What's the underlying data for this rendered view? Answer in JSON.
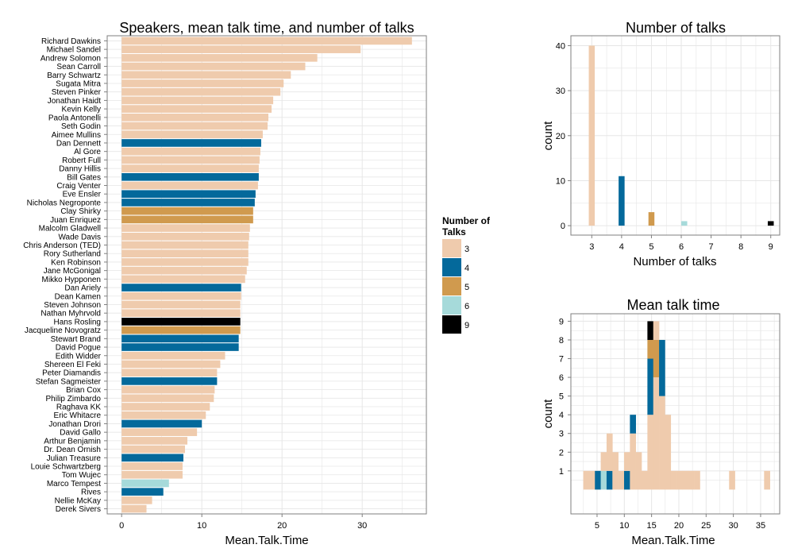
{
  "colors": {
    "3": "#efcbad",
    "4": "#04699b",
    "5": "#d09a4e",
    "6": "#a6dada",
    "9": "#000000",
    "grid": "#e6e6e6",
    "panel_border": "#7f7f7f"
  },
  "chart_data": [
    {
      "type": "bar",
      "orientation": "horizontal",
      "title": "Speakers, mean talk time, and number of talks",
      "xlabel": "Mean.Talk.Time",
      "ylabel": "",
      "xlim": [
        -1.8,
        38
      ],
      "xticks": [
        0,
        10,
        20,
        30
      ],
      "legend": {
        "title_lines": [
          "Number of",
          "Talks"
        ],
        "placement": "right",
        "entries": [
          "3",
          "4",
          "5",
          "6",
          "9"
        ]
      },
      "bars": [
        {
          "name": "Richard Dawkins",
          "value": 36.2,
          "talks": 3
        },
        {
          "name": "Michael Sandel",
          "value": 29.8,
          "talks": 3
        },
        {
          "name": "Andrew Solomon",
          "value": 24.4,
          "talks": 3
        },
        {
          "name": "Sean Carroll",
          "value": 22.9,
          "talks": 3
        },
        {
          "name": "Barry Schwartz",
          "value": 21.1,
          "talks": 3
        },
        {
          "name": "Sugata Mitra",
          "value": 20.2,
          "talks": 3
        },
        {
          "name": "Steven Pinker",
          "value": 19.8,
          "talks": 3
        },
        {
          "name": "Jonathan Haidt",
          "value": 18.9,
          "talks": 3
        },
        {
          "name": "Kevin Kelly",
          "value": 18.7,
          "talks": 3
        },
        {
          "name": "Paola Antonelli",
          "value": 18.3,
          "talks": 3
        },
        {
          "name": "Seth Godin",
          "value": 18.2,
          "talks": 3
        },
        {
          "name": "Aimee Mullins",
          "value": 17.6,
          "talks": 3
        },
        {
          "name": "Dan Dennett",
          "value": 17.4,
          "talks": 4
        },
        {
          "name": "Al Gore",
          "value": 17.3,
          "talks": 3
        },
        {
          "name": "Robert Full",
          "value": 17.2,
          "talks": 3
        },
        {
          "name": "Danny Hillis",
          "value": 17.1,
          "talks": 3
        },
        {
          "name": "Bill Gates",
          "value": 17.1,
          "talks": 4
        },
        {
          "name": "Craig Venter",
          "value": 17.0,
          "talks": 3
        },
        {
          "name": "Eve Ensler",
          "value": 16.7,
          "talks": 4
        },
        {
          "name": "Nicholas Negroponte",
          "value": 16.6,
          "talks": 4
        },
        {
          "name": "Clay Shirky",
          "value": 16.4,
          "talks": 5
        },
        {
          "name": "Juan Enriquez",
          "value": 16.4,
          "talks": 5
        },
        {
          "name": "Malcolm Gladwell",
          "value": 16.0,
          "talks": 3
        },
        {
          "name": "Wade Davis",
          "value": 15.9,
          "talks": 3
        },
        {
          "name": "Chris Anderson (TED)",
          "value": 15.8,
          "talks": 3
        },
        {
          "name": "Rory Sutherland",
          "value": 15.8,
          "talks": 3
        },
        {
          "name": "Ken Robinson",
          "value": 15.8,
          "talks": 3
        },
        {
          "name": "Jane McGonigal",
          "value": 15.6,
          "talks": 3
        },
        {
          "name": "Mikko Hypponen",
          "value": 15.4,
          "talks": 3
        },
        {
          "name": "Dan Ariely",
          "value": 14.9,
          "talks": 4
        },
        {
          "name": "Dean Kamen",
          "value": 14.9,
          "talks": 3
        },
        {
          "name": "Steven Johnson",
          "value": 14.8,
          "talks": 3
        },
        {
          "name": "Nathan Myhrvold",
          "value": 14.8,
          "talks": 3
        },
        {
          "name": "Hans Rosling",
          "value": 14.8,
          "talks": 9
        },
        {
          "name": "Jacqueline Novogratz",
          "value": 14.8,
          "talks": 5
        },
        {
          "name": "Stewart Brand",
          "value": 14.6,
          "talks": 4
        },
        {
          "name": "David Pogue",
          "value": 14.6,
          "talks": 4
        },
        {
          "name": "Edith Widder",
          "value": 12.9,
          "talks": 3
        },
        {
          "name": "Shereen El Feki",
          "value": 12.3,
          "talks": 3
        },
        {
          "name": "Peter Diamandis",
          "value": 11.9,
          "talks": 3
        },
        {
          "name": "Stefan Sagmeister",
          "value": 11.9,
          "talks": 4
        },
        {
          "name": "Brian Cox",
          "value": 11.6,
          "talks": 3
        },
        {
          "name": "Philip Zimbardo",
          "value": 11.5,
          "talks": 3
        },
        {
          "name": "Raghava KK",
          "value": 11.0,
          "talks": 3
        },
        {
          "name": "Eric Whitacre",
          "value": 10.5,
          "talks": 3
        },
        {
          "name": "Jonathan Drori",
          "value": 10.0,
          "talks": 4
        },
        {
          "name": "David Gallo",
          "value": 9.4,
          "talks": 3
        },
        {
          "name": "Arthur Benjamin",
          "value": 8.2,
          "talks": 3
        },
        {
          "name": "Dr. Dean Ornish",
          "value": 7.9,
          "talks": 3
        },
        {
          "name": "Julian Treasure",
          "value": 7.7,
          "talks": 4
        },
        {
          "name": "Louie Schwartzberg",
          "value": 7.6,
          "talks": 3
        },
        {
          "name": "Tom Wujec",
          "value": 7.6,
          "talks": 3
        },
        {
          "name": "Marco Tempest",
          "value": 5.9,
          "talks": 6
        },
        {
          "name": "Rives",
          "value": 5.2,
          "talks": 4
        },
        {
          "name": "Nellie McKay",
          "value": 3.8,
          "talks": 3
        },
        {
          "name": "Derek Sivers",
          "value": 3.1,
          "talks": 3
        }
      ]
    },
    {
      "type": "bar",
      "title": "Number of talks",
      "xlabel": "Number of talks",
      "ylabel": "count",
      "xlim": [
        2.3,
        9.3
      ],
      "ylim": [
        -2.1,
        42.2
      ],
      "xticks": [
        3,
        4,
        5,
        6,
        7,
        8,
        9
      ],
      "yticks": [
        0,
        10,
        20,
        30,
        40
      ],
      "bars": [
        {
          "x": 3.0,
          "count": 40,
          "talks": 3
        },
        {
          "x": 4.0,
          "count": 11,
          "talks": 4
        },
        {
          "x": 5.0,
          "count": 3,
          "talks": 5
        },
        {
          "x": 6.1,
          "count": 1,
          "talks": 6
        },
        {
          "x": 9.0,
          "count": 1,
          "talks": 9
        }
      ]
    },
    {
      "type": "bar",
      "stacked": true,
      "title": "Mean talk time",
      "xlabel": "Mean.Talk.Time",
      "ylabel": "count",
      "xlim": [
        0.2,
        38.5
      ],
      "ylim": [
        -1.3,
        9.4
      ],
      "xticks": [
        5,
        10,
        15,
        20,
        25,
        30,
        35
      ],
      "yticks": [
        1,
        2,
        3,
        4,
        5,
        6,
        7,
        8,
        9
      ],
      "bin_width": 1.07,
      "bins": [
        {
          "x": 3.0,
          "stack": [
            [
              3,
              1
            ]
          ]
        },
        {
          "x": 4.07,
          "stack": [
            [
              3,
              1
            ]
          ]
        },
        {
          "x": 5.14,
          "stack": [
            [
              4,
              1
            ]
          ]
        },
        {
          "x": 6.21,
          "stack": [
            [
              6,
              1
            ],
            [
              3,
              1
            ]
          ]
        },
        {
          "x": 7.28,
          "stack": [
            [
              4,
              1
            ],
            [
              3,
              2
            ]
          ]
        },
        {
          "x": 8.35,
          "stack": [
            [
              3,
              2
            ]
          ]
        },
        {
          "x": 9.42,
          "stack": [
            [
              3,
              1
            ]
          ]
        },
        {
          "x": 10.49,
          "stack": [
            [
              4,
              1
            ],
            [
              3,
              1
            ]
          ]
        },
        {
          "x": 11.56,
          "stack": [
            [
              3,
              3
            ],
            [
              4,
              1
            ]
          ]
        },
        {
          "x": 12.63,
          "stack": [
            [
              3,
              2
            ]
          ]
        },
        {
          "x": 13.7,
          "stack": [
            [
              3,
              1
            ]
          ]
        },
        {
          "x": 14.77,
          "stack": [
            [
              3,
              4
            ],
            [
              4,
              3
            ],
            [
              5,
              1
            ],
            [
              9,
              1
            ]
          ]
        },
        {
          "x": 15.84,
          "stack": [
            [
              3,
              6
            ],
            [
              5,
              2
            ],
            [
              3,
              1
            ]
          ]
        },
        {
          "x": 16.91,
          "stack": [
            [
              3,
              5
            ],
            [
              4,
              3
            ]
          ]
        },
        {
          "x": 17.98,
          "stack": [
            [
              3,
              4
            ]
          ]
        },
        {
          "x": 19.05,
          "stack": [
            [
              3,
              1
            ]
          ]
        },
        {
          "x": 20.12,
          "stack": [
            [
              3,
              1
            ]
          ]
        },
        {
          "x": 21.19,
          "stack": [
            [
              3,
              1
            ]
          ]
        },
        {
          "x": 22.26,
          "stack": [
            [
              3,
              1
            ]
          ]
        },
        {
          "x": 23.33,
          "stack": [
            [
              3,
              1
            ]
          ]
        },
        {
          "x": 29.75,
          "stack": [
            [
              3,
              1
            ]
          ]
        },
        {
          "x": 36.17,
          "stack": [
            [
              3,
              1
            ]
          ]
        }
      ]
    }
  ]
}
